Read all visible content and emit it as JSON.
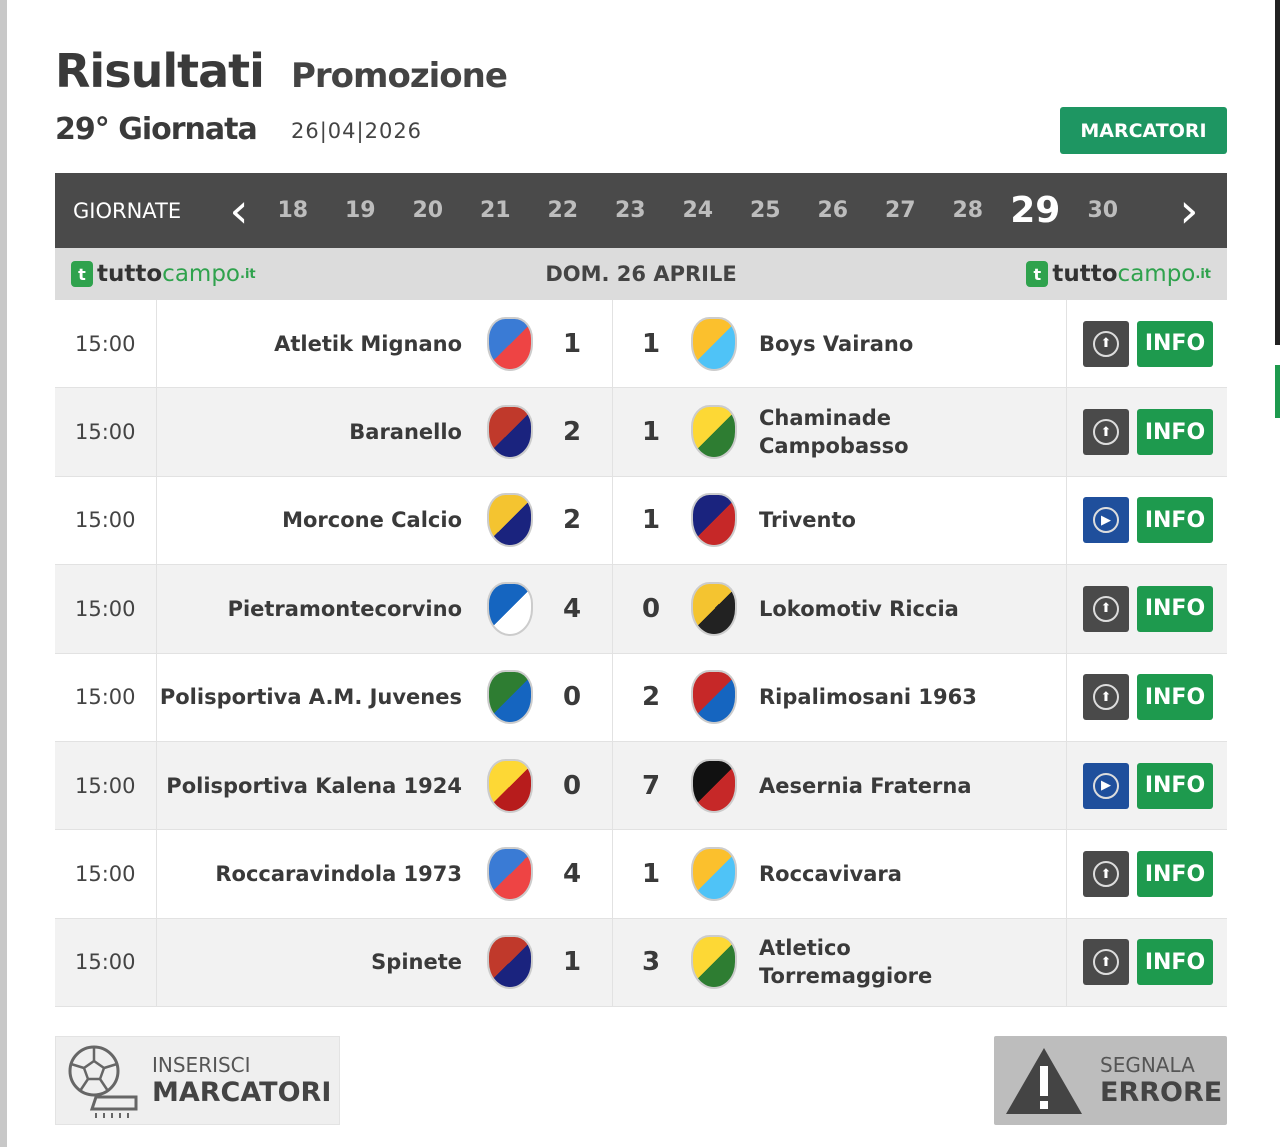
{
  "header": {
    "title": "Risultati",
    "subtitle": "Promozione",
    "giornata": "29° Giornata",
    "date": "26|04|2026",
    "marcatori_label": "MARCATORI"
  },
  "nav": {
    "label": "GIORNATE",
    "rounds": [
      "18",
      "19",
      "20",
      "21",
      "22",
      "23",
      "24",
      "25",
      "26",
      "27",
      "28",
      "29",
      "30"
    ],
    "active": "29"
  },
  "subheader": {
    "day": "DOM. 26 APRILE",
    "logo": {
      "a": "tutto",
      "b": "campo",
      ".it": ".it"
    }
  },
  "matches": [
    {
      "time": "15:00",
      "home": "Atletik Mignano",
      "home_score": "1",
      "away_score": "1",
      "away": "Boys Vairano",
      "media": "upload",
      "info": "INFO"
    },
    {
      "time": "15:00",
      "home": "Baranello",
      "home_score": "2",
      "away_score": "1",
      "away": "Chaminade Campobasso",
      "media": "upload",
      "info": "INFO"
    },
    {
      "time": "15:00",
      "home": "Morcone Calcio",
      "home_score": "2",
      "away_score": "1",
      "away": "Trivento",
      "media": "video",
      "info": "INFO"
    },
    {
      "time": "15:00",
      "home": "Pietramontecorvino",
      "home_score": "4",
      "away_score": "0",
      "away": "Lokomotiv Riccia",
      "media": "upload",
      "info": "INFO"
    },
    {
      "time": "15:00",
      "home": "Polisportiva A.M. Juvenes",
      "home_score": "0",
      "away_score": "2",
      "away": "Ripalimosani 1963",
      "media": "upload",
      "info": "INFO"
    },
    {
      "time": "15:00",
      "home": "Polisportiva Kalena 1924",
      "home_score": "0",
      "away_score": "7",
      "away": "Aesernia Fraterna",
      "media": "video",
      "info": "INFO"
    },
    {
      "time": "15:00",
      "home": "Roccaravindola 1973",
      "home_score": "4",
      "away_score": "1",
      "away": "Roccavivara",
      "media": "upload",
      "info": "INFO"
    },
    {
      "time": "15:00",
      "home": "Spinete",
      "home_score": "1",
      "away_score": "3",
      "away": "Atletico Torremaggiore",
      "media": "upload",
      "info": "INFO"
    }
  ],
  "footer": {
    "insert_l1": "INSERISCI",
    "insert_l2": "MARCATORI",
    "report_l1": "SEGNALA",
    "report_l2": "ERRORE"
  },
  "colors": {
    "accent": "#1e9a4e",
    "nav_bg": "#4a4a4a",
    "video": "#1f4f9c"
  },
  "crest_colors": [
    [
      "#3a7bd5",
      "#e44",
      "#f4c430",
      "#222"
    ],
    [
      "#c0392b",
      "#1a237e",
      "#c62828",
      "#1565c0"
    ],
    [
      "#f4c430",
      "#1a237e",
      "#111",
      "#c62828"
    ],
    [
      "#1565c0",
      "#fff",
      "#fbc02d",
      "#4fc3f7"
    ],
    [
      "#2e7d32",
      "#1565c0",
      "#fdd835",
      "#2e7d32"
    ],
    [
      "#fdd835",
      "#b71c1c",
      "#1a237e",
      "#c62828"
    ]
  ]
}
